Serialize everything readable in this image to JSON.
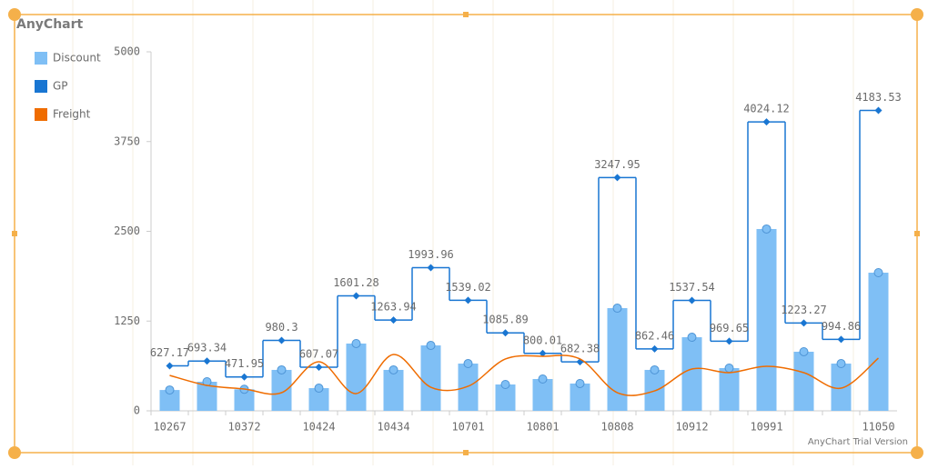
{
  "chart_data": {
    "type": "combo",
    "title": "AnyChart",
    "watermark": "AnyChart Trial Version",
    "categories": [
      "10267",
      null,
      "10372",
      null,
      "10424",
      null,
      "10434",
      null,
      "10701",
      null,
      "10801",
      null,
      "10808",
      null,
      "10912",
      null,
      "10991",
      null,
      null,
      "11050"
    ],
    "ylim": [
      0,
      5000
    ],
    "yticks": [
      0,
      1250,
      2500,
      3750,
      5000
    ],
    "grid": false,
    "legend": "left",
    "series": [
      {
        "name": "Discount",
        "type": "bar",
        "color": "#7fbff5",
        "values": [
          290,
          405,
          300,
          570,
          316,
          937,
          570,
          911,
          658,
          367,
          443,
          380,
          1430,
          570,
          1025,
          595,
          2532,
          823,
          658,
          1924
        ]
      },
      {
        "name": "GP",
        "type": "step",
        "color": "#1976d2",
        "values": [
          627.17,
          693.34,
          471.95,
          980.3,
          607.07,
          1601.28,
          1263.94,
          1993.96,
          1539.02,
          1085.89,
          800.01,
          682.38,
          3247.95,
          862.46,
          1537.54,
          969.65,
          4024.12,
          1223.27,
          994.86,
          4183.53
        ]
      },
      {
        "name": "Freight",
        "type": "spline",
        "color": "#ef6c00",
        "values": [
          494,
          354,
          304,
          253,
          684,
          240,
          785,
          329,
          342,
          722,
          760,
          722,
          253,
          278,
          582,
          532,
          620,
          532,
          316,
          734
        ]
      }
    ]
  }
}
